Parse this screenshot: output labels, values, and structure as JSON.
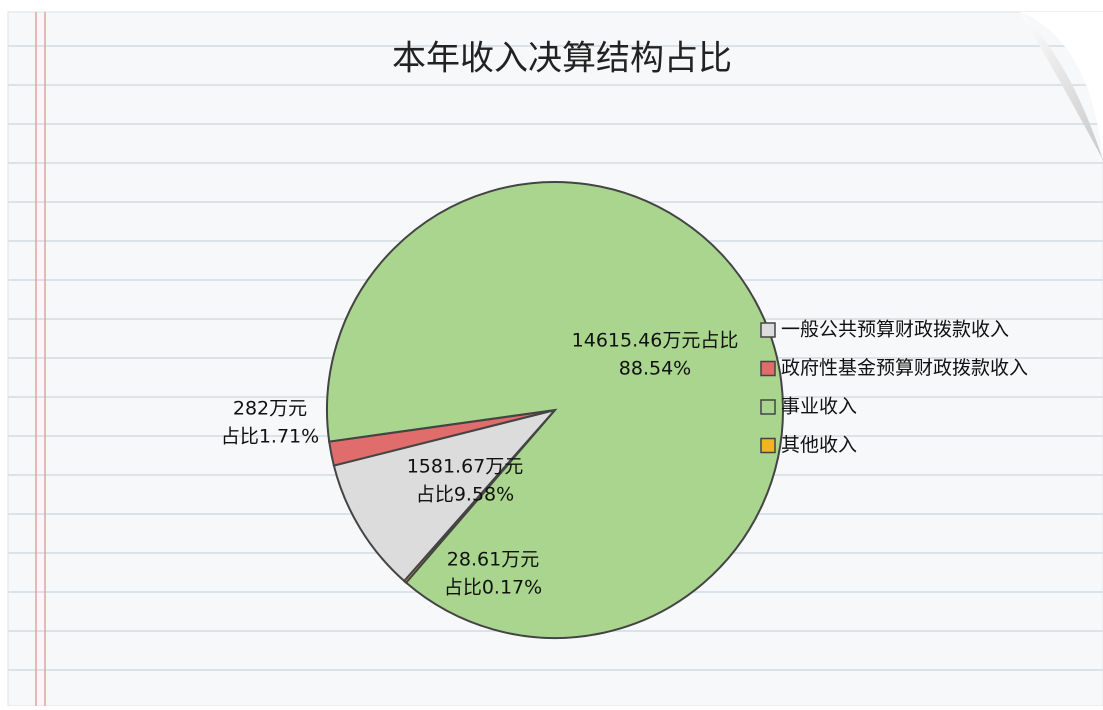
{
  "chart_data": {
    "type": "pie",
    "title": "本年收入决算结构占比",
    "categories": [
      "一般公共预算财政拨款收入",
      "政府性基金预算财政拨款收入",
      "事业收入",
      "其他收入"
    ],
    "values": [
      1581.67,
      282,
      14615.46,
      28.61
    ],
    "value_labels": [
      "1581.67万元",
      "282万元",
      "14615.46万元占比",
      "28.61万元"
    ],
    "percents": [
      9.58,
      1.71,
      88.54,
      0.17
    ],
    "percent_labels": [
      "占比9.58%",
      "占比1.71%",
      "88.54%",
      "占比0.17%"
    ],
    "colors": [
      "#dcdcdc",
      "#e06c6c",
      "#a9d58e",
      "#f2b51f"
    ],
    "legend": "right"
  }
}
